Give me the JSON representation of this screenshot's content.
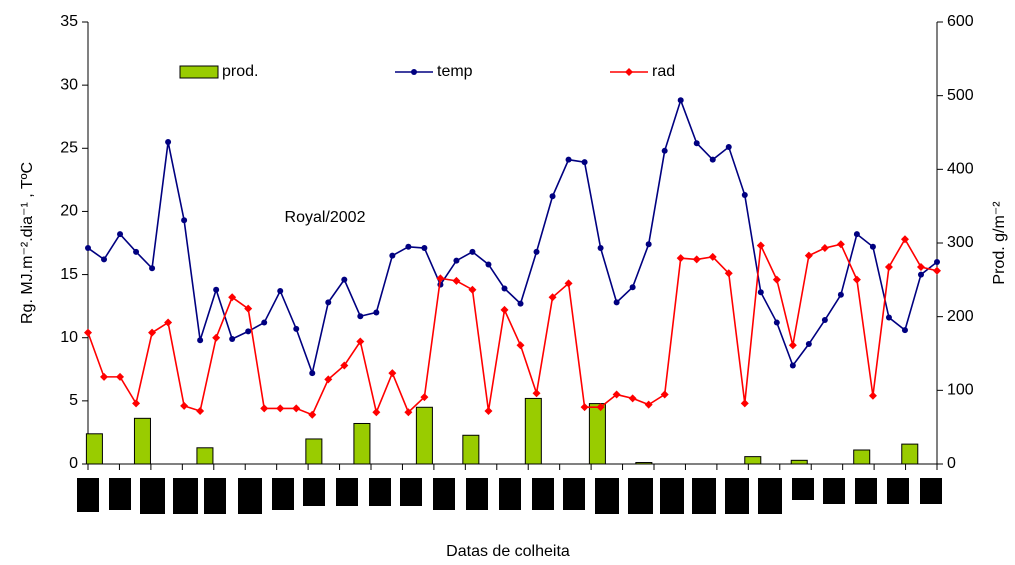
{
  "chart_data": {
    "type": "combo",
    "annotation": "Royal/2002",
    "x_label": "Datas de colheita",
    "y_label": "Rg. MJ.m⁻².dia⁻¹ ,  TºC",
    "y2_label": "Prod. g/m⁻²",
    "xlim": [
      0,
      53
    ],
    "ylim": [
      0,
      35
    ],
    "yticks": [
      0,
      5,
      10,
      15,
      20,
      25,
      30,
      35
    ],
    "y2lim": [
      0,
      600
    ],
    "y2ticks": [
      0,
      100,
      200,
      300,
      400,
      500,
      600
    ],
    "series": [
      {
        "name": "prod.",
        "type": "bar",
        "axis": "y2",
        "color": "#99cc00",
        "x": [
          0.4,
          3.4,
          7.3,
          14.1,
          17.1,
          21,
          23.9,
          27.8,
          31.8,
          34.7,
          41.5,
          44.4,
          48.3,
          51.3
        ],
        "values": [
          41,
          62,
          22,
          34,
          55,
          77,
          39,
          89,
          82,
          2,
          10,
          5,
          19,
          27
        ]
      },
      {
        "name": "temp",
        "type": "line",
        "marker": "circle",
        "color": "#000080",
        "x": [
          0,
          1,
          2,
          3,
          4,
          5,
          6,
          7,
          8,
          9,
          10,
          11,
          12,
          13,
          14,
          15,
          16,
          17,
          18,
          19,
          20,
          21,
          22,
          23,
          24,
          25,
          26,
          27,
          28,
          29,
          30,
          31,
          32,
          33,
          34,
          35,
          36,
          37,
          38,
          39,
          40,
          41,
          42,
          43,
          44,
          45,
          46,
          47,
          48,
          49,
          50,
          51,
          52,
          53
        ],
        "values": [
          17.1,
          16.2,
          18.2,
          16.8,
          15.5,
          25.5,
          19.3,
          9.8,
          13.8,
          9.9,
          10.5,
          11.2,
          13.7,
          10.7,
          7.2,
          12.8,
          14.6,
          11.7,
          12.0,
          16.5,
          17.2,
          17.1,
          14.2,
          16.1,
          16.8,
          15.8,
          13.9,
          12.7,
          16.8,
          21.2,
          24.1,
          23.9,
          17.1,
          12.8,
          14.0,
          17.4,
          24.8,
          28.8,
          25.4,
          24.1,
          25.1,
          21.3,
          13.6,
          11.2,
          7.8,
          9.5,
          11.4,
          13.4,
          18.2,
          17.2,
          11.6,
          10.6,
          15.0,
          16.0
        ]
      },
      {
        "name": "rad",
        "type": "line",
        "marker": "diamond",
        "color": "#ff0000",
        "x": [
          0,
          1,
          2,
          3,
          4,
          5,
          6,
          7,
          8,
          9,
          10,
          11,
          12,
          13,
          14,
          15,
          16,
          17,
          18,
          19,
          20,
          21,
          22,
          23,
          24,
          25,
          26,
          27,
          28,
          29,
          30,
          31,
          32,
          33,
          34,
          35,
          36,
          37,
          38,
          39,
          40,
          41,
          42,
          43,
          44,
          45,
          46,
          47,
          48,
          49,
          50,
          51,
          52,
          53
        ],
        "values": [
          10.4,
          6.9,
          6.9,
          4.8,
          10.4,
          11.2,
          4.6,
          4.2,
          10.0,
          13.2,
          12.3,
          4.4,
          4.4,
          4.4,
          3.9,
          6.7,
          7.8,
          9.7,
          4.1,
          7.2,
          4.1,
          5.3,
          14.7,
          14.5,
          13.8,
          4.2,
          12.2,
          9.4,
          5.6,
          13.2,
          14.3,
          4.5,
          4.5,
          5.5,
          5.2,
          4.7,
          5.5,
          16.3,
          16.2,
          16.4,
          15.1,
          4.8,
          17.3,
          14.6,
          9.4,
          16.5,
          17.1,
          17.4,
          14.6,
          5.4,
          15.6,
          17.8,
          15.6,
          15.3
        ]
      }
    ]
  }
}
